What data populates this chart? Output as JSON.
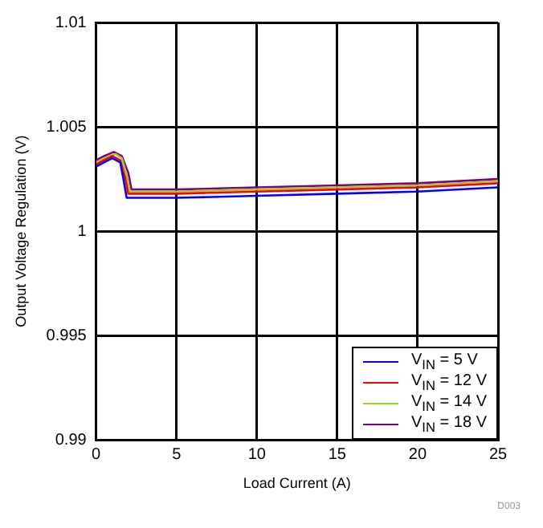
{
  "chart_data": {
    "type": "line",
    "xlabel": "Load Current (A)",
    "ylabel": "Output Voltage Regulation (V)",
    "xlim": [
      0,
      25
    ],
    "xticks": [
      0,
      5,
      10,
      15,
      20,
      25
    ],
    "ylim": [
      0.99,
      1.01
    ],
    "yticks": [
      0.99,
      0.995,
      1,
      1.005,
      1.01
    ],
    "grid": true,
    "legend": "bottom right",
    "marker": "none",
    "line_style": "solid",
    "annotations": [
      "D003"
    ],
    "series": [
      {
        "name": "V$_{IN}$ = 5 V",
        "color": "#0000ff",
        "x": [
          0,
          0.5,
          1,
          1.5,
          1.7,
          1.9,
          5,
          10,
          15,
          20,
          25
        ],
        "values": [
          1.0031,
          1.0033,
          1.0035,
          1.0033,
          1.0025,
          1.0016,
          1.0016,
          1.0017,
          1.0018,
          1.0019,
          1.0021
        ]
      },
      {
        "name": "V$_{IN}$ = 12 V",
        "color": "#ff0000",
        "x": [
          0,
          0.5,
          1,
          1.5,
          1.8,
          2,
          5,
          10,
          15,
          20,
          25
        ],
        "values": [
          1.0032,
          1.0034,
          1.0036,
          1.0034,
          1.0026,
          1.0018,
          1.0018,
          1.0019,
          1.002,
          1.0021,
          1.0023
        ]
      },
      {
        "name": "V$_{IN}$ = 14 V",
        "color": "#9acd32",
        "x": [
          0,
          0.5,
          1.2,
          1.6,
          1.9,
          2.1,
          5,
          10,
          15,
          20,
          25
        ],
        "values": [
          1.0033,
          1.0035,
          1.0037,
          1.0035,
          1.0027,
          1.0019,
          1.0019,
          1.002,
          1.0021,
          1.0022,
          1.0024
        ]
      },
      {
        "name": "V$_{IN}$ = 18 V",
        "color": "#800080",
        "x": [
          0,
          0.5,
          1.1,
          1.6,
          2,
          2.2,
          5,
          10,
          15,
          20,
          25
        ],
        "values": [
          1.0034,
          1.0036,
          1.0038,
          1.0036,
          1.0028,
          1.002,
          1.002,
          1.0021,
          1.0022,
          1.0023,
          1.0025
        ]
      }
    ]
  }
}
